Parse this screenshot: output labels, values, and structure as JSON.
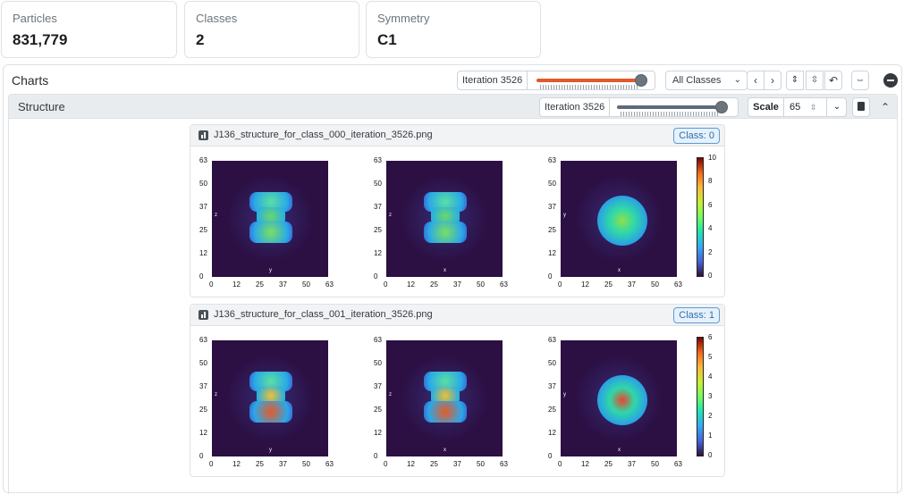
{
  "stats": [
    {
      "label": "Particles",
      "value": "831,779"
    },
    {
      "label": "Classes",
      "value": "2"
    },
    {
      "label": "Symmetry",
      "value": "C1"
    }
  ],
  "charts": {
    "title": "Charts",
    "iteration_label": "Iteration 3526",
    "iteration_progress": 1.0,
    "class_filter": "All Classes",
    "accent_color": "#e05a2b"
  },
  "structure": {
    "title": "Structure",
    "iteration_label": "Iteration 3526",
    "iteration_progress": 1.0,
    "scale_label": "Scale",
    "scale_value": "65"
  },
  "icons": [
    "chevron-left-icon",
    "chevron-right-icon",
    "expand-vertical-icon",
    "compress-vertical-icon",
    "undo-icon",
    "expand-horizontal-icon",
    "collapse-icon",
    "book-icon",
    "chevron-up-icon",
    "chevron-down-icon",
    "bar-chart-icon"
  ],
  "images": [
    {
      "filename": "J136_structure_for_class_000_iteration_3526.png",
      "class_label": "Class: 0",
      "colorbar_ticks": [
        "10",
        "8",
        "6",
        "4",
        "2",
        "0"
      ]
    },
    {
      "filename": "J136_structure_for_class_001_iteration_3526.png",
      "class_label": "Class: 1",
      "colorbar_ticks": [
        "6",
        "5",
        "4",
        "3",
        "2",
        "1",
        "0"
      ]
    }
  ],
  "plot_axes": {
    "y_ticks": [
      "63",
      "50",
      "37",
      "25",
      "12",
      "0"
    ],
    "x_ticks": [
      "0",
      "12",
      "25",
      "37",
      "50",
      "63"
    ],
    "panel_axes": [
      {
        "x": "y",
        "y": "z"
      },
      {
        "x": "x",
        "y": "z"
      },
      {
        "x": "x",
        "y": "y"
      }
    ]
  }
}
